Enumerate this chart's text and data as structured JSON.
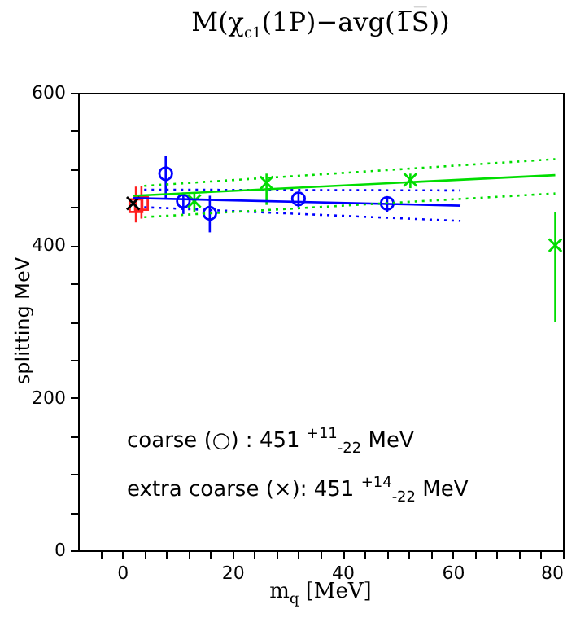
{
  "chart_data": {
    "type": "scatter",
    "title": "M(χ$_{c1}$(1P)−avg(1̅S̅))",
    "xlabel": "m$_{q}$ [MeV]",
    "ylabel": "splitting MeV",
    "xlim": [
      -8,
      80
    ],
    "ylim": [
      0,
      600
    ],
    "xticks": [
      {
        "value": -4,
        "label": null
      },
      0,
      {
        "value": 4,
        "label": null
      },
      {
        "value": 8,
        "label": null
      },
      {
        "value": 12,
        "label": null
      },
      {
        "value": 16,
        "label": null
      },
      20,
      {
        "value": 24,
        "label": null
      },
      {
        "value": 28,
        "label": null
      },
      {
        "value": 32,
        "label": null
      },
      {
        "value": 36,
        "label": null
      },
      40,
      {
        "value": 44,
        "label": null
      },
      {
        "value": 48,
        "label": null
      },
      {
        "value": 52,
        "label": null
      },
      {
        "value": 56,
        "label": null
      },
      60,
      {
        "value": 64,
        "label": null
      },
      {
        "value": 68,
        "label": null
      },
      {
        "value": 72,
        "label": null
      },
      {
        "value": 76,
        "label": null
      },
      80
    ],
    "yticks": [
      0,
      {
        "value": 50,
        "label": null
      },
      {
        "value": 100,
        "label": null
      },
      {
        "value": 150,
        "label": null
      },
      200,
      {
        "value": 250,
        "label": null
      },
      {
        "value": 300,
        "label": null
      },
      {
        "value": 350,
        "label": null
      },
      400,
      {
        "value": 450,
        "label": null
      },
      {
        "value": 500,
        "label": null
      },
      {
        "value": 550,
        "label": null
      },
      600
    ],
    "grid": false,
    "annotations": [
      "coarse (○) :  451 $^{+11}$$_{-22}$ MeV",
      "extra coarse (×):  451 $^{+14}$$_{-22}$ MeV"
    ],
    "series": [
      {
        "color": "#ff2020",
        "marker": "square",
        "x": [
          2.5,
          3.5
        ],
        "values": [
          452,
          455
        ],
        "errors": [
          [
            430,
            477
          ],
          [
            435,
            478
          ]
        ]
      },
      {
        "color": "#000000",
        "marker": "cross",
        "x": [
          2.0
        ],
        "values": [
          455
        ]
      },
      {
        "color": "#0000ff",
        "marker": "circle",
        "x": [
          7.9,
          11.1,
          15.9,
          32.0,
          48.1
        ],
        "values": [
          494,
          458,
          442,
          461,
          455
        ],
        "errors": [
          [
            461,
            517
          ],
          [
            441,
            469
          ],
          [
            417,
            465
          ],
          [
            450,
            469
          ],
          [
            444,
            463
          ]
        ]
      },
      {
        "color": "#00dd00",
        "marker": "cross",
        "x": [
          13.1,
          26.2,
          52.3,
          78.6
        ],
        "values": [
          458,
          482,
          486,
          400
        ],
        "errors": [
          [
            444,
            469
          ],
          [
            453,
            494
          ],
          [
            475,
            494
          ],
          [
            300,
            444
          ]
        ]
      },
      {
        "type": "line",
        "color": "#0000ff",
        "line_style": "solid",
        "x": [
          2,
          61.4
        ],
        "values": [
          462,
          452
        ]
      },
      {
        "type": "line",
        "color": "#0000ff",
        "line_style": "dotted",
        "x": [
          4,
          61.4
        ],
        "values": [
          473,
          472
        ]
      },
      {
        "type": "line",
        "color": "#0000ff",
        "line_style": "dotted",
        "x": [
          4,
          61.4
        ],
        "values": [
          450,
          432
        ]
      },
      {
        "type": "line",
        "color": "#00dd00",
        "line_style": "solid",
        "x": [
          2,
          78.6
        ],
        "values": [
          465,
          492
        ]
      },
      {
        "type": "line",
        "color": "#00dd00",
        "line_style": "dotted",
        "x": [
          4,
          78.6
        ],
        "values": [
          478,
          513
        ]
      },
      {
        "type": "line",
        "color": "#00dd00",
        "line_style": "dotted",
        "x": [
          4,
          78.6
        ],
        "values": [
          437,
          468
        ]
      }
    ]
  }
}
